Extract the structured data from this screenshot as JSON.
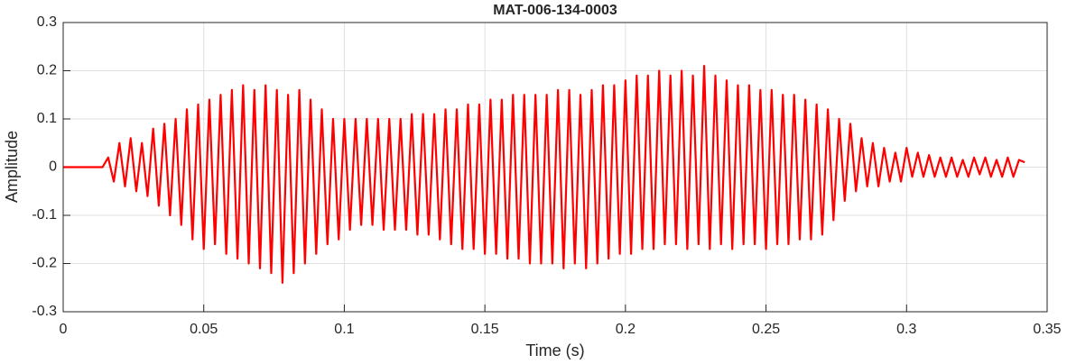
{
  "chart_data": {
    "type": "line",
    "title": "MAT-006-134-0003",
    "xlabel": "Time (s)",
    "ylabel": "Amplitude",
    "xlim": [
      0,
      0.35
    ],
    "xticks": [
      0,
      0.05,
      0.1,
      0.15,
      0.2,
      0.25,
      0.3,
      0.35
    ],
    "ylim": [
      -0.3,
      0.3
    ],
    "yticks": [
      -0.3,
      -0.2,
      -0.1,
      0,
      0.1,
      0.2,
      0.3
    ],
    "grid": true,
    "series": [
      {
        "color": "#ff0000",
        "x": [
          0,
          0.008,
          0.014,
          0.016,
          0.018,
          0.02,
          0.022,
          0.024,
          0.026,
          0.028,
          0.03,
          0.032,
          0.034,
          0.036,
          0.038,
          0.04,
          0.042,
          0.044,
          0.046,
          0.048,
          0.05,
          0.052,
          0.054,
          0.056,
          0.058,
          0.06,
          0.062,
          0.064,
          0.066,
          0.068,
          0.07,
          0.072,
          0.074,
          0.076,
          0.078,
          0.08,
          0.082,
          0.084,
          0.086,
          0.088,
          0.09,
          0.092,
          0.094,
          0.096,
          0.098,
          0.1,
          0.102,
          0.104,
          0.106,
          0.108,
          0.11,
          0.112,
          0.114,
          0.116,
          0.118,
          0.12,
          0.122,
          0.124,
          0.126,
          0.128,
          0.13,
          0.132,
          0.134,
          0.136,
          0.138,
          0.14,
          0.142,
          0.144,
          0.146,
          0.148,
          0.15,
          0.152,
          0.154,
          0.156,
          0.158,
          0.16,
          0.162,
          0.164,
          0.166,
          0.168,
          0.17,
          0.172,
          0.174,
          0.176,
          0.178,
          0.18,
          0.182,
          0.184,
          0.186,
          0.188,
          0.19,
          0.192,
          0.194,
          0.196,
          0.198,
          0.2,
          0.202,
          0.204,
          0.206,
          0.208,
          0.21,
          0.212,
          0.214,
          0.216,
          0.218,
          0.22,
          0.222,
          0.224,
          0.226,
          0.228,
          0.23,
          0.232,
          0.234,
          0.236,
          0.238,
          0.24,
          0.242,
          0.244,
          0.246,
          0.248,
          0.25,
          0.252,
          0.254,
          0.256,
          0.258,
          0.26,
          0.262,
          0.264,
          0.266,
          0.268,
          0.27,
          0.272,
          0.274,
          0.276,
          0.278,
          0.28,
          0.282,
          0.284,
          0.286,
          0.288,
          0.29,
          0.292,
          0.294,
          0.296,
          0.298,
          0.3,
          0.302,
          0.304,
          0.306,
          0.308,
          0.31,
          0.312,
          0.314,
          0.316,
          0.318,
          0.32,
          0.322,
          0.324,
          0.326,
          0.328,
          0.33,
          0.332,
          0.334,
          0.336,
          0.338,
          0.34,
          0.342
        ],
        "values": [
          0,
          0,
          0,
          0.02,
          -0.03,
          0.05,
          -0.04,
          0.06,
          -0.05,
          0.05,
          -0.06,
          0.08,
          -0.08,
          0.09,
          -0.1,
          0.1,
          -0.12,
          0.12,
          -0.15,
          0.13,
          -0.17,
          0.14,
          -0.16,
          0.15,
          -0.18,
          0.16,
          -0.19,
          0.17,
          -0.2,
          0.16,
          -0.21,
          0.17,
          -0.22,
          0.16,
          -0.24,
          0.15,
          -0.22,
          0.16,
          -0.2,
          0.14,
          -0.18,
          0.12,
          -0.16,
          0.1,
          -0.15,
          0.1,
          -0.13,
          0.1,
          -0.12,
          0.1,
          -0.12,
          0.1,
          -0.13,
          0.1,
          -0.13,
          0.1,
          -0.13,
          0.11,
          -0.14,
          0.11,
          -0.14,
          0.11,
          -0.15,
          0.12,
          -0.16,
          0.12,
          -0.17,
          0.13,
          -0.17,
          0.13,
          -0.18,
          0.14,
          -0.18,
          0.14,
          -0.19,
          0.15,
          -0.19,
          0.15,
          -0.2,
          0.15,
          -0.2,
          0.15,
          -0.2,
          0.16,
          -0.21,
          0.16,
          -0.2,
          0.15,
          -0.21,
          0.16,
          -0.2,
          0.17,
          -0.19,
          0.17,
          -0.18,
          0.18,
          -0.18,
          0.19,
          -0.17,
          0.19,
          -0.17,
          0.2,
          -0.16,
          0.19,
          -0.16,
          0.2,
          -0.17,
          0.19,
          -0.16,
          0.21,
          -0.17,
          0.19,
          -0.16,
          0.18,
          -0.17,
          0.17,
          -0.16,
          0.17,
          -0.16,
          0.16,
          -0.17,
          0.16,
          -0.16,
          0.15,
          -0.16,
          0.15,
          -0.15,
          0.14,
          -0.15,
          0.13,
          -0.14,
          0.12,
          -0.11,
          0.1,
          -0.07,
          0.09,
          -0.05,
          0.06,
          -0.04,
          0.05,
          -0.04,
          0.04,
          -0.03,
          0.03,
          -0.03,
          0.04,
          -0.02,
          0.03,
          -0.02,
          0.025,
          -0.02,
          0.02,
          -0.02,
          0.02,
          -0.02,
          0.015,
          -0.02,
          0.02,
          -0.015,
          0.02,
          -0.02,
          0.015,
          -0.02,
          0.02,
          -0.02,
          0.015,
          0.01
        ]
      }
    ]
  }
}
